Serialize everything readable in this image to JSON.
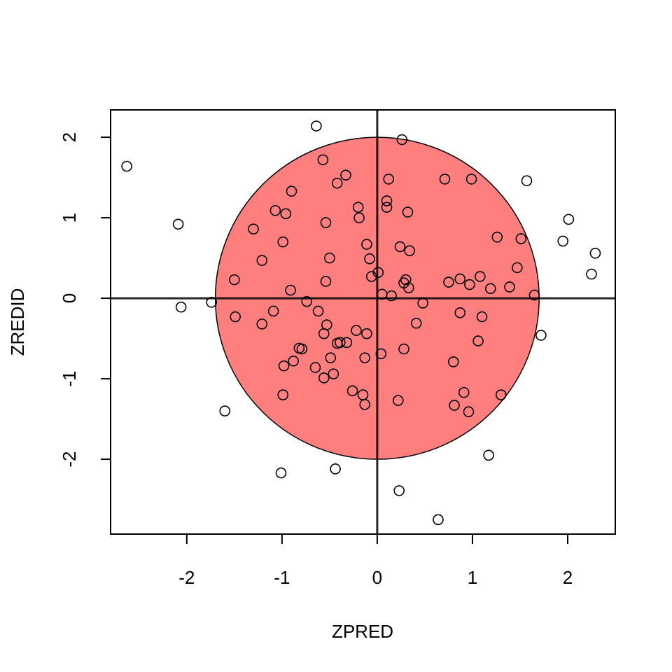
{
  "chart_data": {
    "type": "scatter",
    "title": "",
    "xlabel": "ZPRED",
    "ylabel": "ZREDID",
    "xlim": [
      -2.8,
      2.5
    ],
    "ylim": [
      -2.93,
      2.34
    ],
    "x_ticks": [
      -2,
      -1,
      0,
      1,
      2
    ],
    "y_ticks": [
      -2,
      -1,
      0,
      1,
      2
    ],
    "x_tick_labels": [
      "-2",
      "-1",
      "0",
      "1",
      "2"
    ],
    "y_tick_labels": [
      "-2",
      "-1",
      "0",
      "1",
      "2"
    ],
    "reference_lines": {
      "horizontal_at": 0,
      "vertical_at": 0
    },
    "region": {
      "shape": "ellipse",
      "center": [
        0,
        0
      ],
      "x_radius": 1.7,
      "y_radius": 2,
      "fill_color": "#ff7f7f"
    },
    "grid": false,
    "legend": "none",
    "marker": "open-circle",
    "marker_color": "#000000",
    "points": [
      {
        "x": -0.64,
        "y": 2.14
      },
      {
        "x": 0.26,
        "y": 1.97
      },
      {
        "x": -2.63,
        "y": 1.64
      },
      {
        "x": -0.57,
        "y": 1.72
      },
      {
        "x": -0.33,
        "y": 1.53
      },
      {
        "x": -0.42,
        "y": 1.43
      },
      {
        "x": 0.12,
        "y": 1.48
      },
      {
        "x": 0.71,
        "y": 1.48
      },
      {
        "x": 0.99,
        "y": 1.48
      },
      {
        "x": 1.57,
        "y": 1.46
      },
      {
        "x": -0.9,
        "y": 1.33
      },
      {
        "x": 0.1,
        "y": 1.21
      },
      {
        "x": -0.2,
        "y": 1.13
      },
      {
        "x": 0.1,
        "y": 1.13
      },
      {
        "x": -1.07,
        "y": 1.09
      },
      {
        "x": -0.96,
        "y": 1.05
      },
      {
        "x": 0.32,
        "y": 1.07
      },
      {
        "x": -0.19,
        "y": 1.0
      },
      {
        "x": 2.01,
        "y": 0.98
      },
      {
        "x": -2.09,
        "y": 0.92
      },
      {
        "x": -0.54,
        "y": 0.94
      },
      {
        "x": -1.3,
        "y": 0.86
      },
      {
        "x": 1.26,
        "y": 0.76
      },
      {
        "x": 1.51,
        "y": 0.74
      },
      {
        "x": 1.95,
        "y": 0.71
      },
      {
        "x": -0.99,
        "y": 0.7
      },
      {
        "x": -0.11,
        "y": 0.67
      },
      {
        "x": 0.24,
        "y": 0.64
      },
      {
        "x": 0.34,
        "y": 0.59
      },
      {
        "x": 2.29,
        "y": 0.56
      },
      {
        "x": -0.5,
        "y": 0.5
      },
      {
        "x": -0.08,
        "y": 0.49
      },
      {
        "x": -1.21,
        "y": 0.47
      },
      {
        "x": 1.47,
        "y": 0.38
      },
      {
        "x": 0.01,
        "y": 0.32
      },
      {
        "x": 2.25,
        "y": 0.3
      },
      {
        "x": -0.06,
        "y": 0.27
      },
      {
        "x": 1.08,
        "y": 0.27
      },
      {
        "x": -1.5,
        "y": 0.23
      },
      {
        "x": 0.87,
        "y": 0.24
      },
      {
        "x": 0.3,
        "y": 0.23
      },
      {
        "x": -0.54,
        "y": 0.21
      },
      {
        "x": 0.75,
        "y": 0.2
      },
      {
        "x": 0.28,
        "y": 0.19
      },
      {
        "x": 0.97,
        "y": 0.17
      },
      {
        "x": 1.39,
        "y": 0.14
      },
      {
        "x": 0.33,
        "y": 0.13
      },
      {
        "x": 1.19,
        "y": 0.12
      },
      {
        "x": -0.91,
        "y": 0.1
      },
      {
        "x": 0.05,
        "y": 0.05
      },
      {
        "x": 1.65,
        "y": 0.04
      },
      {
        "x": 0.15,
        "y": 0.03
      },
      {
        "x": -1.74,
        "y": -0.05
      },
      {
        "x": -0.74,
        "y": -0.04
      },
      {
        "x": 0.48,
        "y": -0.06
      },
      {
        "x": -2.06,
        "y": -0.11
      },
      {
        "x": -1.09,
        "y": -0.16
      },
      {
        "x": -0.62,
        "y": -0.16
      },
      {
        "x": 0.87,
        "y": -0.18
      },
      {
        "x": -1.49,
        "y": -0.23
      },
      {
        "x": 1.1,
        "y": -0.23
      },
      {
        "x": 0.41,
        "y": -0.31
      },
      {
        "x": -1.21,
        "y": -0.32
      },
      {
        "x": -0.53,
        "y": -0.33
      },
      {
        "x": -0.22,
        "y": -0.4
      },
      {
        "x": -0.56,
        "y": -0.44
      },
      {
        "x": -0.11,
        "y": -0.44
      },
      {
        "x": 1.72,
        "y": -0.46
      },
      {
        "x": -0.39,
        "y": -0.55
      },
      {
        "x": -0.32,
        "y": -0.55
      },
      {
        "x": -0.42,
        "y": -0.56
      },
      {
        "x": 1.06,
        "y": -0.53
      },
      {
        "x": -0.82,
        "y": -0.62
      },
      {
        "x": -0.79,
        "y": -0.63
      },
      {
        "x": 0.28,
        "y": -0.63
      },
      {
        "x": 0.04,
        "y": -0.69
      },
      {
        "x": -0.13,
        "y": -0.74
      },
      {
        "x": -0.49,
        "y": -0.74
      },
      {
        "x": -0.88,
        "y": -0.78
      },
      {
        "x": 0.8,
        "y": -0.79
      },
      {
        "x": -0.98,
        "y": -0.84
      },
      {
        "x": -0.65,
        "y": -0.86
      },
      {
        "x": -0.46,
        "y": -0.94
      },
      {
        "x": -0.56,
        "y": -0.99
      },
      {
        "x": -0.26,
        "y": -1.15
      },
      {
        "x": 0.91,
        "y": -1.17
      },
      {
        "x": -0.15,
        "y": -1.2
      },
      {
        "x": -0.99,
        "y": -1.2
      },
      {
        "x": 1.3,
        "y": -1.2
      },
      {
        "x": 0.22,
        "y": -1.27
      },
      {
        "x": -0.13,
        "y": -1.32
      },
      {
        "x": 0.81,
        "y": -1.33
      },
      {
        "x": 0.96,
        "y": -1.41
      },
      {
        "x": -1.6,
        "y": -1.4
      },
      {
        "x": 1.17,
        "y": -1.95
      },
      {
        "x": -0.44,
        "y": -2.12
      },
      {
        "x": -1.01,
        "y": -2.17
      },
      {
        "x": 0.23,
        "y": -2.39
      },
      {
        "x": 0.64,
        "y": -2.75
      }
    ]
  }
}
